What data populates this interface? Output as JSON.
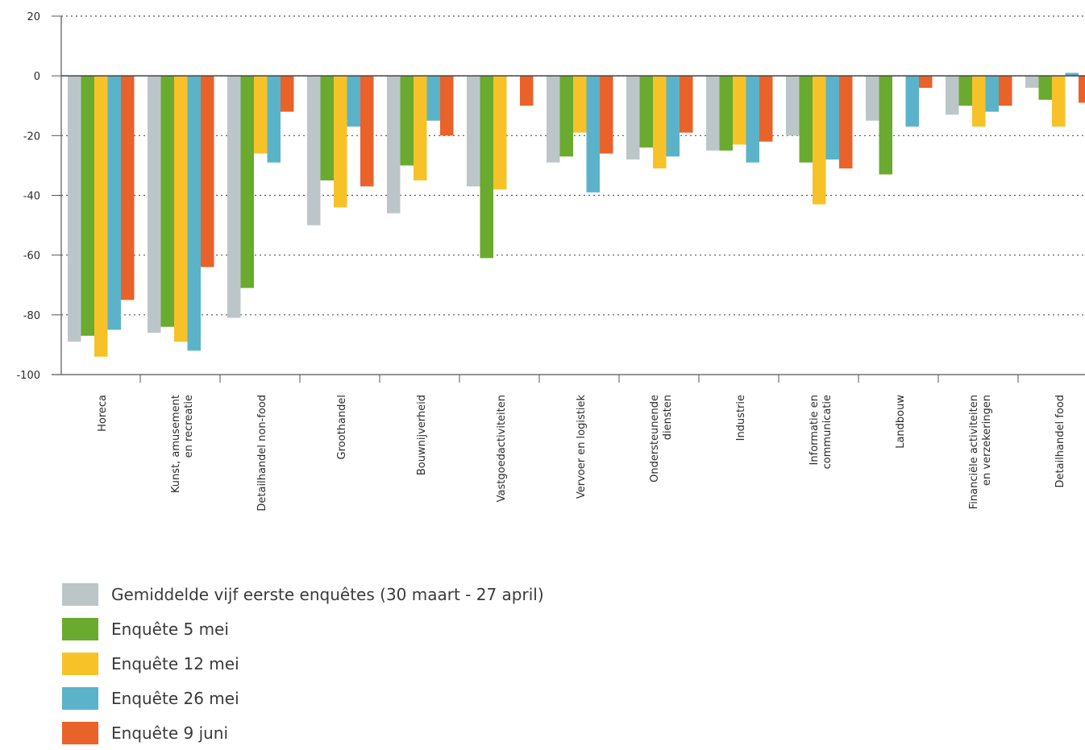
{
  "chart_data": {
    "type": "bar",
    "title": "",
    "xlabel": "",
    "ylabel": "",
    "ylim": [
      -100,
      20
    ],
    "yticks": [
      20,
      0,
      -20,
      -40,
      -60,
      -80,
      -100
    ],
    "grid": "horizontal dotted",
    "legend_position": "bottom-left",
    "categories": [
      [
        "Horeca"
      ],
      [
        "Kunst, amusement",
        "en recreatie"
      ],
      [
        "Detailhandel non-food"
      ],
      [
        "Groothandel"
      ],
      [
        "Bouwnijverheid"
      ],
      [
        "Vastgoedactiviteiten"
      ],
      [
        "Vervoer en logistiek"
      ],
      [
        "Ondersteunende",
        "diensten"
      ],
      [
        "Industrie"
      ],
      [
        "Informatie en",
        "communicatie"
      ],
      [
        "Landbouw"
      ],
      [
        "Financiële activiteiten",
        "en verzekeringen"
      ],
      [
        "Detailhandel food"
      ]
    ],
    "series": [
      {
        "name": "Gemiddelde vijf eerste enquêtes (30 maart - 27 april)",
        "color": "#bcc6c9",
        "values": [
          -89,
          -86,
          -81,
          -50,
          -46,
          -37,
          -29,
          -28,
          -25,
          -20,
          -15,
          -13,
          -4
        ]
      },
      {
        "name": "Enquête 5 mei",
        "color": "#6aaa2e",
        "values": [
          -87,
          -84,
          -71,
          -35,
          -30,
          -61,
          -27,
          -24,
          -25,
          -29,
          -33,
          -10,
          -8
        ]
      },
      {
        "name": "Enquête 12 mei",
        "color": "#f7c228",
        "values": [
          -94,
          -89,
          -26,
          -44,
          -35,
          -38,
          -19,
          -31,
          -23,
          -43,
          0,
          -17,
          -17
        ]
      },
      {
        "name": "Enquête 26 mei",
        "color": "#5bb3c9",
        "values": [
          -85,
          -92,
          -29,
          -17,
          -15,
          0,
          -39,
          -27,
          -29,
          -28,
          -17,
          -12,
          1
        ]
      },
      {
        "name": "Enquête 9 juni",
        "color": "#e8622a",
        "values": [
          -75,
          -64,
          -12,
          -37,
          -20,
          -10,
          -26,
          -19,
          -22,
          -31,
          -4,
          -10,
          -9
        ]
      }
    ]
  }
}
